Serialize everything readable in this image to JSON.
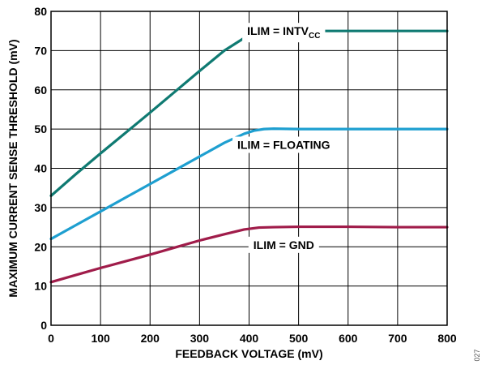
{
  "chart_data": {
    "type": "line",
    "xlabel": "FEEDBACK VOLTAGE (mV)",
    "ylabel": "MAXIMUM CURRENT SENSE THRESHOLD (mV)",
    "xlim": [
      0,
      800
    ],
    "ylim": [
      0,
      80
    ],
    "xticks": [
      0,
      100,
      200,
      300,
      400,
      500,
      600,
      700,
      800
    ],
    "yticks": [
      0,
      10,
      20,
      30,
      40,
      50,
      60,
      70,
      80
    ],
    "grid": true,
    "series": [
      {
        "label_main": "ILIM = INTV",
        "label_sub": "CC",
        "color": "#0f7a72",
        "x": [
          0,
          50,
          100,
          150,
          200,
          250,
          300,
          350,
          390,
          410,
          430,
          450,
          500,
          600,
          700,
          800
        ],
        "y": [
          33,
          38.5,
          43.8,
          49,
          54.2,
          59.5,
          64.8,
          70,
          73.2,
          74.5,
          75,
          75,
          75,
          75,
          75,
          75
        ]
      },
      {
        "label_main": "ILIM = FLOATING",
        "label_sub": "",
        "color": "#1e9fd0",
        "x": [
          0,
          50,
          100,
          150,
          200,
          250,
          300,
          350,
          390,
          410,
          430,
          450,
          500,
          600,
          700,
          800
        ],
        "y": [
          22,
          25.5,
          29,
          32.5,
          36,
          39.5,
          43,
          46.5,
          48.8,
          49.6,
          50,
          50.1,
          50,
          50,
          50,
          50
        ]
      },
      {
        "label_main": "ILIM = GND",
        "label_sub": "",
        "color": "#a01c4a",
        "x": [
          0,
          50,
          100,
          150,
          200,
          250,
          300,
          350,
          390,
          420,
          450,
          500,
          550,
          600,
          700,
          800
        ],
        "y": [
          11,
          12.8,
          14.6,
          16.3,
          18,
          19.8,
          21.6,
          23.2,
          24.4,
          24.9,
          25,
          25.1,
          25.1,
          25.1,
          25,
          25
        ]
      }
    ]
  },
  "figure_id": "027"
}
